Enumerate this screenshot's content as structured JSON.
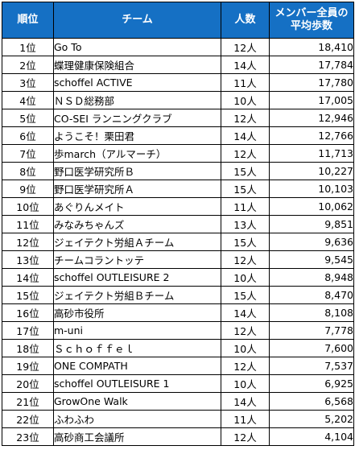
{
  "headers": {
    "rank": "順位",
    "team": "チーム",
    "members": "人数",
    "avg_line1": "メンバー全員の",
    "avg_line2": "平均歩数"
  },
  "rows": [
    {
      "rank": "1位",
      "team": "Go To",
      "members": "12人",
      "avg": "18,410"
    },
    {
      "rank": "2位",
      "team": "蝶理健康保険組合",
      "members": "14人",
      "avg": "17,784"
    },
    {
      "rank": "3位",
      "team": "schoffel ACTIVE",
      "members": "11人",
      "avg": "17,780"
    },
    {
      "rank": "4位",
      "team": "ＮＳＤ総務部",
      "members": "10人",
      "avg": "17,005"
    },
    {
      "rank": "5位",
      "team": "CO-SEI ランニングクラブ",
      "members": "12人",
      "avg": "12,946"
    },
    {
      "rank": "6位",
      "team": "ようこそ！栗田君",
      "members": "14人",
      "avg": "12,766"
    },
    {
      "rank": "7位",
      "team": "歩march（アルマーチ）",
      "members": "12人",
      "avg": "11,713"
    },
    {
      "rank": "8位",
      "team": "野口医学研究所Ｂ",
      "members": "15人",
      "avg": "10,227"
    },
    {
      "rank": "9位",
      "team": "野口医学研究所Ａ",
      "members": "15人",
      "avg": "10,103"
    },
    {
      "rank": "10位",
      "team": "あぐりんメイト",
      "members": "11人",
      "avg": "10,062"
    },
    {
      "rank": "11位",
      "team": "みなみちゃんズ",
      "members": "13人",
      "avg": "9,851"
    },
    {
      "rank": "12位",
      "team": "ジェイテクト労組Ａチーム",
      "members": "15人",
      "avg": "9,636"
    },
    {
      "rank": "13位",
      "team": "チームコラントッテ",
      "members": "12人",
      "avg": "9,545"
    },
    {
      "rank": "14位",
      "team": "schoffel OUTLEISURE 2",
      "members": "10人",
      "avg": "8,948"
    },
    {
      "rank": "15位",
      "team": "ジェイテクト労組Ｂチーム",
      "members": "15人",
      "avg": "8,470"
    },
    {
      "rank": "16位",
      "team": "高砂市役所",
      "members": "14人",
      "avg": "8,108"
    },
    {
      "rank": "17位",
      "team": "m-uni",
      "members": "12人",
      "avg": "7,778"
    },
    {
      "rank": "18位",
      "team": "Ｓｃｈｏｆｆｅｌ",
      "members": "10人",
      "avg": "7,600"
    },
    {
      "rank": "19位",
      "team": "ONE COMPATH",
      "members": "12人",
      "avg": "7,537"
    },
    {
      "rank": "20位",
      "team": "schoffel OUTLEISURE 1",
      "members": "10人",
      "avg": "6,925"
    },
    {
      "rank": "21位",
      "team": "GrowOne Walk",
      "members": "14人",
      "avg": "6,568"
    },
    {
      "rank": "22位",
      "team": "ふわふわ",
      "members": "11人",
      "avg": "5,202"
    },
    {
      "rank": "23位",
      "team": "高砂商工会議所",
      "members": "12人",
      "avg": "4,104"
    }
  ],
  "colors": {
    "header_bg": "#1570c4",
    "header_text": "#ffffff",
    "border": "#000000"
  }
}
